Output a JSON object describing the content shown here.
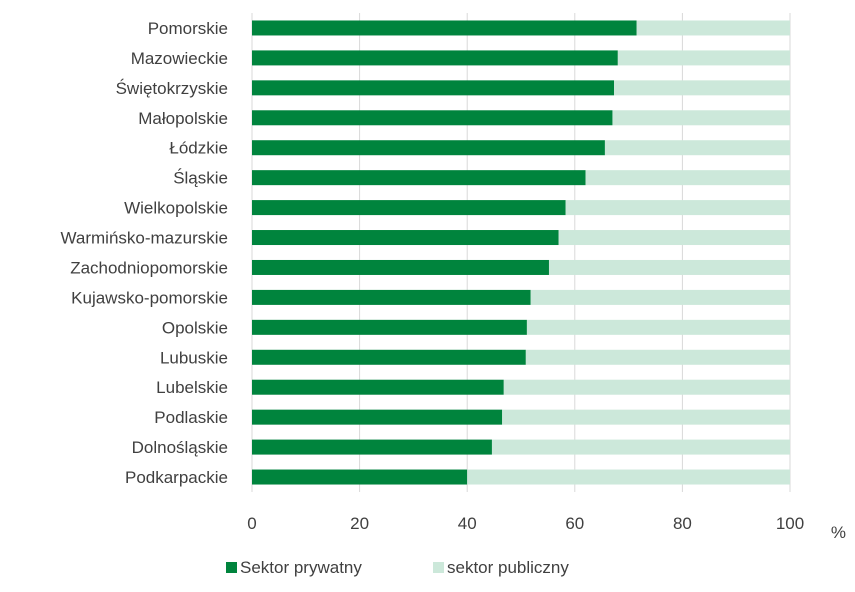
{
  "chart_data": {
    "type": "bar",
    "orientation": "horizontal",
    "stacked": "percent",
    "categories": [
      "Pomorskie",
      "Mazowieckie",
      "Świętokrzyskie",
      "Małopolskie",
      "Łódzkie",
      "Śląskie",
      "Wielkopolskie",
      "Warmińsko-mazurskie",
      "Zachodniopomorskie",
      "Kujawsko-pomorskie",
      "Opolskie",
      "Lubuskie",
      "Lubelskie",
      "Podlaskie",
      "Dolnośląskie",
      "Podkarpackie"
    ],
    "series": [
      {
        "name": "Sektor prywatny",
        "color": "#00843d",
        "values": [
          71.5,
          68,
          67.3,
          67,
          65.6,
          62,
          58.3,
          57,
          55.2,
          51.8,
          51.1,
          50.9,
          46.8,
          46.5,
          44.6,
          40
        ]
      },
      {
        "name": "sektor publiczny",
        "color": "#cce8da",
        "values": [
          28.5,
          32,
          32.7,
          33,
          34.4,
          38,
          41.7,
          43,
          44.8,
          48.2,
          48.9,
          49.1,
          53.2,
          53.5,
          55.4,
          60
        ]
      }
    ],
    "x_ticks": [
      "0",
      "20",
      "40",
      "60",
      "80",
      "100"
    ],
    "xlim": [
      0,
      100
    ],
    "unit": "%",
    "grid": true,
    "legend_position": "bottom"
  }
}
